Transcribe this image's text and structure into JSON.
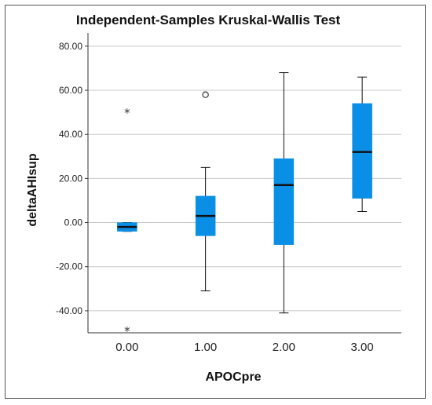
{
  "chart_data": {
    "type": "boxplot",
    "title": "Independent-Samples Kruskal-Wallis Test",
    "xlabel": "APOCpre",
    "ylabel": "deltaAHIsup",
    "categories": [
      "0.00",
      "1.00",
      "2.00",
      "3.00"
    ],
    "ylim": [
      -50,
      86
    ],
    "yticks": [
      -40,
      -20,
      0,
      20,
      40,
      60,
      80
    ],
    "ytick_labels": [
      "-40.00",
      "-20.00",
      "0.00",
      "20.00",
      "40.00",
      "60.00",
      "80.00"
    ],
    "grid": "horizontal",
    "box_color": "#0a8fe6",
    "boxes": [
      {
        "category": "0.00",
        "whisker_low": -4,
        "q1": -4,
        "median": -2,
        "q3": 0,
        "whisker_high": 0,
        "outliers": [],
        "extremes": [
          50,
          -49
        ]
      },
      {
        "category": "1.00",
        "whisker_low": -31,
        "q1": -6,
        "median": 3,
        "q3": 12,
        "whisker_high": 25,
        "outliers": [
          58
        ],
        "extremes": []
      },
      {
        "category": "2.00",
        "whisker_low": -41,
        "q1": -10,
        "median": 17,
        "q3": 29,
        "whisker_high": 68,
        "outliers": [],
        "extremes": []
      },
      {
        "category": "3.00",
        "whisker_low": 5,
        "q1": 11,
        "median": 32,
        "q3": 54,
        "whisker_high": 66,
        "outliers": [],
        "extremes": []
      }
    ]
  }
}
